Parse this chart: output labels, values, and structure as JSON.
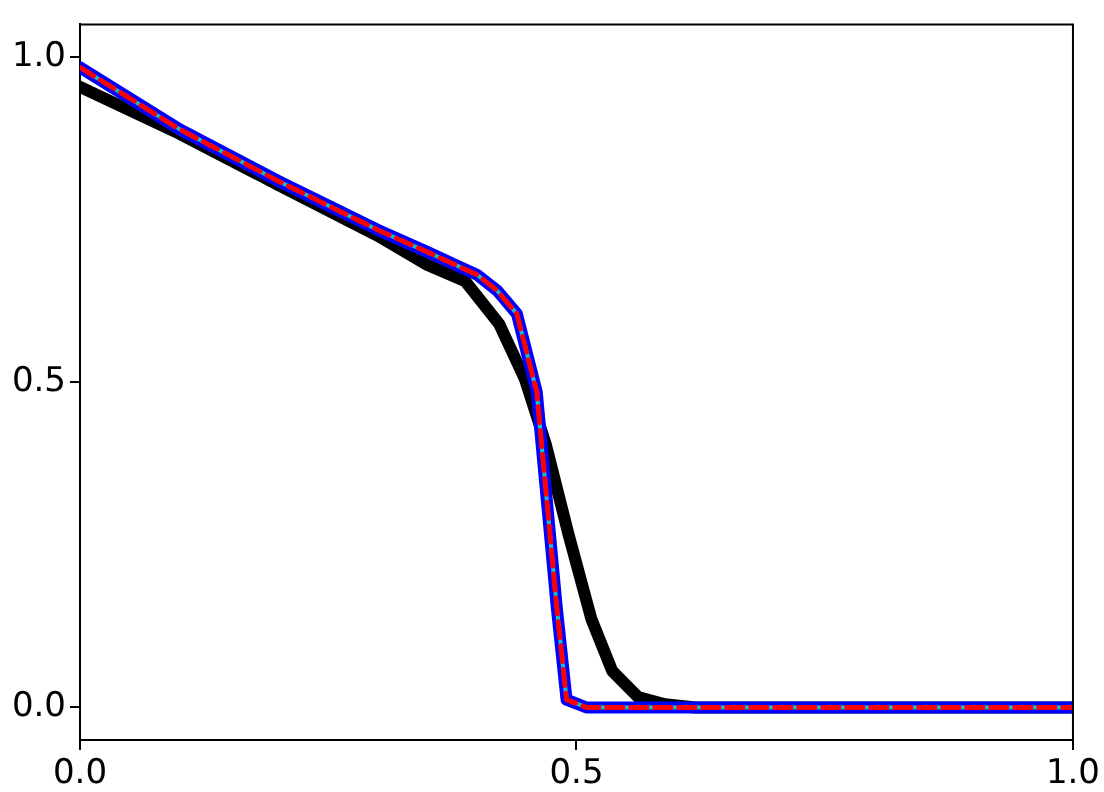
{
  "chart_data": {
    "type": "line",
    "xlim": [
      0,
      1
    ],
    "xticks": [
      {
        "value": 0,
        "label": "0.0"
      },
      {
        "value": 0.5,
        "label": "0.5"
      },
      {
        "value": 1,
        "label": "1.0"
      }
    ],
    "ylim": [
      -0.05,
      1.05
    ],
    "yticks": [
      {
        "value": 0,
        "label": "0.0"
      },
      {
        "value": 0.5,
        "label": "0.5"
      },
      {
        "value": 1,
        "label": "1.0"
      }
    ],
    "grid": false,
    "legend": false,
    "marker": "none",
    "series": [
      {
        "color": "#000000",
        "line_style": "solid",
        "x": [
          0,
          0.1,
          0.2,
          0.3,
          0.35,
          0.388,
          0.422,
          0.448,
          0.469,
          0.492,
          0.515,
          0.536,
          0.562,
          0.589,
          0.62,
          0.7,
          0.8,
          0.9,
          1
        ],
        "values": [
          0.954,
          0.882,
          0.803,
          0.725,
          0.68,
          0.655,
          0.59,
          0.505,
          0.405,
          0.266,
          0.136,
          0.056,
          0.016,
          0.005,
          0,
          0,
          0,
          0,
          0
        ]
      },
      {
        "color": "#0000ff",
        "line_style": "solid",
        "x": [
          0,
          0.1,
          0.2,
          0.3,
          0.35,
          0.4,
          0.42,
          0.44,
          0.46,
          0.48,
          0.49,
          0.51,
          0.6,
          0.7,
          0.8,
          0.9,
          1
        ],
        "values": [
          0.984,
          0.889,
          0.809,
          0.734,
          0.7,
          0.665,
          0.641,
          0.605,
          0.485,
          0.156,
          0.012,
          0,
          0,
          0,
          0,
          0,
          0
        ]
      },
      {
        "color": "#17becf",
        "line_style": "solid",
        "x": [
          0,
          0.1,
          0.2,
          0.3,
          0.35,
          0.4,
          0.42,
          0.44,
          0.46,
          0.48,
          0.49,
          0.51,
          0.6,
          0.7,
          0.8,
          0.9,
          1
        ],
        "values": [
          0.984,
          0.889,
          0.809,
          0.734,
          0.7,
          0.665,
          0.641,
          0.605,
          0.485,
          0.156,
          0.012,
          0,
          0,
          0,
          0,
          0,
          0
        ]
      },
      {
        "color": "#ff0000",
        "line_style": "dashed",
        "x": [
          0,
          0.1,
          0.2,
          0.3,
          0.35,
          0.4,
          0.42,
          0.44,
          0.46,
          0.48,
          0.49,
          0.51,
          0.6,
          0.7,
          0.8,
          0.9,
          1
        ],
        "values": [
          0.984,
          0.889,
          0.809,
          0.734,
          0.7,
          0.665,
          0.641,
          0.605,
          0.485,
          0.156,
          0.012,
          0,
          0,
          0,
          0,
          0,
          0
        ]
      }
    ]
  }
}
